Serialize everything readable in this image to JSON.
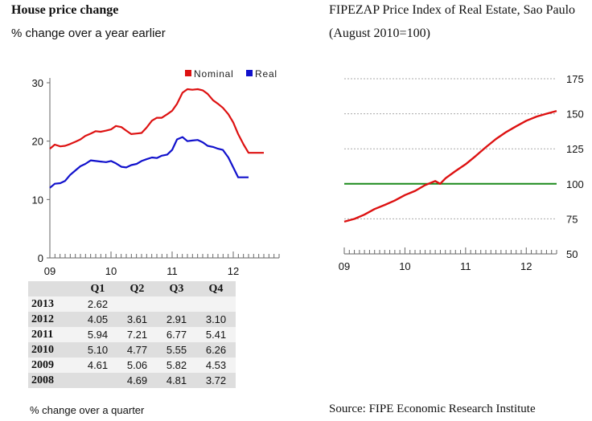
{
  "left_panel": {
    "title": "House price change",
    "subtitle": "% change over a year earlier"
  },
  "right_panel": {
    "title": "FIPEZAP Price Index of Real Estate, Sao Paulo",
    "subtitle": "(August 2010=100)"
  },
  "chart_data": [
    {
      "type": "line",
      "title": "House price change",
      "subtitle": "% change over a year earlier",
      "x_ticks": [
        "09",
        "10",
        "11",
        "12"
      ],
      "y_ticks": [
        0,
        10,
        20,
        30
      ],
      "ylim": [
        0,
        30
      ],
      "xlim": [
        2009.0,
        2012.75
      ],
      "legend_position": "top-right",
      "colors": {
        "Nominal": "#dd1111",
        "Real": "#1111cc"
      },
      "series": [
        {
          "name": "Nominal",
          "x": [
            2009.0,
            2009.08,
            2009.17,
            2009.25,
            2009.33,
            2009.42,
            2009.5,
            2009.58,
            2009.67,
            2009.75,
            2009.83,
            2009.92,
            2010.0,
            2010.08,
            2010.17,
            2010.25,
            2010.33,
            2010.42,
            2010.5,
            2010.58,
            2010.67,
            2010.75,
            2010.83,
            2010.92,
            2011.0,
            2011.08,
            2011.17,
            2011.25,
            2011.33,
            2011.42,
            2011.5,
            2011.58,
            2011.67,
            2011.75,
            2011.83,
            2011.92,
            2012.0,
            2012.08,
            2012.17,
            2012.25,
            2012.33,
            2012.42,
            2012.5
          ],
          "values": [
            18.7,
            19.4,
            19.1,
            19.2,
            19.5,
            19.9,
            20.3,
            20.9,
            21.3,
            21.7,
            21.6,
            21.8,
            22.0,
            22.6,
            22.4,
            21.8,
            21.2,
            21.3,
            21.4,
            22.3,
            23.5,
            24.0,
            24.0,
            24.6,
            25.2,
            26.4,
            28.3,
            28.9,
            28.8,
            28.9,
            28.7,
            28.1,
            27.0,
            26.4,
            25.7,
            24.6,
            23.2,
            21.2,
            19.4,
            18.0,
            18.0,
            18.0,
            18.0
          ]
        },
        {
          "name": "Real",
          "x": [
            2009.0,
            2009.08,
            2009.17,
            2009.25,
            2009.33,
            2009.42,
            2009.5,
            2009.58,
            2009.67,
            2009.75,
            2009.83,
            2009.92,
            2010.0,
            2010.08,
            2010.17,
            2010.25,
            2010.33,
            2010.42,
            2010.5,
            2010.58,
            2010.67,
            2010.75,
            2010.83,
            2010.92,
            2011.0,
            2011.08,
            2011.17,
            2011.25,
            2011.33,
            2011.42,
            2011.5,
            2011.58,
            2011.67,
            2011.75,
            2011.83,
            2011.92,
            2012.0,
            2012.08,
            2012.17,
            2012.25
          ],
          "values": [
            12.0,
            12.7,
            12.8,
            13.2,
            14.2,
            15.0,
            15.7,
            16.1,
            16.7,
            16.6,
            16.5,
            16.4,
            16.6,
            16.2,
            15.6,
            15.5,
            15.9,
            16.1,
            16.6,
            16.9,
            17.2,
            17.1,
            17.5,
            17.7,
            18.5,
            20.3,
            20.7,
            20.0,
            20.1,
            20.2,
            19.8,
            19.2,
            19.0,
            18.7,
            18.5,
            17.2,
            15.5,
            13.8,
            13.8,
            13.8
          ]
        }
      ]
    },
    {
      "type": "line",
      "title": "FIPEZAP Price Index of Real Estate, Sao Paulo",
      "subtitle": "(August 2010=100)",
      "x_ticks": [
        "09",
        "10",
        "11",
        "12"
      ],
      "y_ticks": [
        50,
        75,
        100,
        125,
        150,
        175
      ],
      "ylim": [
        50,
        175
      ],
      "xlim": [
        2009.0,
        2012.5
      ],
      "y_axis_position": "right",
      "reference_line": {
        "value": 100,
        "color": "#1a8a1a"
      },
      "colors": {
        "Index": "#dd1111"
      },
      "series": [
        {
          "x": [
            2009.0,
            2009.17,
            2009.33,
            2009.5,
            2009.67,
            2009.83,
            2010.0,
            2010.17,
            2010.33,
            2010.5,
            2010.58,
            2010.67,
            2010.83,
            2011.0,
            2011.17,
            2011.33,
            2011.5,
            2011.67,
            2011.83,
            2012.0,
            2012.17,
            2012.33,
            2012.5
          ],
          "values": [
            73,
            75,
            78,
            82,
            85,
            88,
            92,
            95,
            99,
            102,
            100,
            104,
            109,
            114,
            120,
            126,
            132,
            137,
            141,
            145,
            148,
            150,
            152
          ]
        }
      ]
    },
    {
      "type": "table",
      "columns": [
        "",
        "Q1",
        "Q2",
        "Q3",
        "Q4"
      ],
      "rows": [
        {
          "year": "2013",
          "q": [
            "2.62",
            "",
            "",
            ""
          ]
        },
        {
          "year": "2012",
          "q": [
            "4.05",
            "3.61",
            "2.91",
            "3.10"
          ]
        },
        {
          "year": "2011",
          "q": [
            "5.94",
            "7.21",
            "6.77",
            "5.41"
          ]
        },
        {
          "year": "2010",
          "q": [
            "5.10",
            "4.77",
            "5.55",
            "6.26"
          ]
        },
        {
          "year": "2009",
          "q": [
            "4.61",
            "5.06",
            "5.82",
            "4.53"
          ]
        },
        {
          "year": "2008",
          "q": [
            "",
            "4.69",
            "4.81",
            "3.72"
          ]
        }
      ],
      "note": "% change over a quarter"
    }
  ],
  "footer": {
    "note": "% change over a quarter",
    "source": "Source: FIPE Economic Research Institute"
  }
}
